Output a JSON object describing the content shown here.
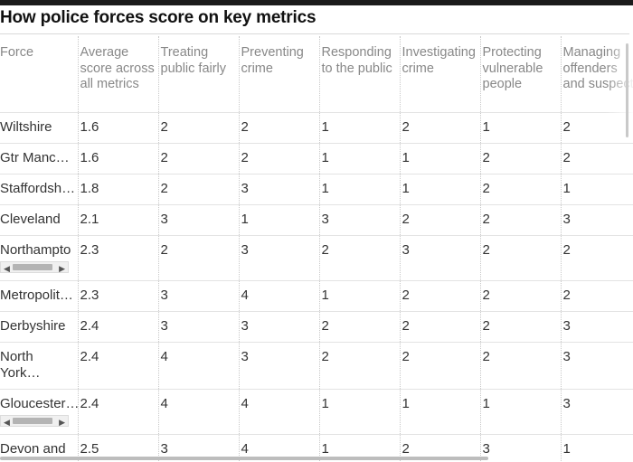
{
  "title": "How police forces score on key metrics",
  "columns": [
    "Force",
    "Average score across all metrics",
    "Treating public fairly",
    "Preventing crime",
    "Responding to the public",
    "Investigating crime",
    "Protecting vulnerable people",
    "Managing offenders and suspects"
  ],
  "rows": [
    {
      "force": "Wiltshire",
      "values": [
        "1.6",
        "2",
        "2",
        "1",
        "2",
        "1",
        "2"
      ]
    },
    {
      "force": "Gtr Manc…",
      "values": [
        "1.6",
        "2",
        "2",
        "1",
        "1",
        "2",
        "2"
      ]
    },
    {
      "force": "Staffordsh…",
      "values": [
        "1.8",
        "2",
        "3",
        "1",
        "1",
        "2",
        "1"
      ]
    },
    {
      "force": "Cleveland",
      "values": [
        "2.1",
        "3",
        "1",
        "3",
        "2",
        "2",
        "3"
      ]
    },
    {
      "force": "Northampto",
      "values": [
        "2.3",
        "2",
        "3",
        "2",
        "3",
        "2",
        "2"
      ]
    },
    {
      "force": "Metropolit…",
      "values": [
        "2.3",
        "3",
        "4",
        "1",
        "2",
        "2",
        "2"
      ]
    },
    {
      "force": "Derbyshire",
      "values": [
        "2.4",
        "3",
        "3",
        "2",
        "2",
        "2",
        "3"
      ]
    },
    {
      "force": "North York…",
      "values": [
        "2.4",
        "4",
        "3",
        "2",
        "2",
        "2",
        "3"
      ]
    },
    {
      "force": "Gloucester…",
      "values": [
        "2.4",
        "4",
        "4",
        "1",
        "1",
        "1",
        "3"
      ]
    },
    {
      "force": "Devon and",
      "values": [
        "2.5",
        "3",
        "4",
        "1",
        "2",
        "3",
        "1"
      ]
    }
  ]
}
